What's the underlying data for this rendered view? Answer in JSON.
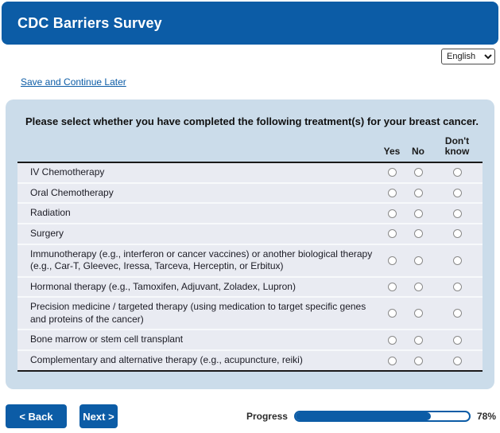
{
  "header": {
    "title": "CDC Barriers Survey"
  },
  "language": {
    "selected": "English",
    "options": [
      "English"
    ]
  },
  "links": {
    "save_continue": "Save and Continue Later"
  },
  "question": {
    "text": "Please select whether you have completed the following treatment(s) for your breast cancer."
  },
  "matrix": {
    "columns": [
      "Yes",
      "No",
      "Don't know"
    ],
    "rows": [
      "IV Chemotherapy",
      "Oral Chemotherapy",
      "Radiation",
      "Surgery",
      "Immunotherapy (e.g., interferon or cancer vaccines) or another biological therapy (e.g., Car-T, Gleevec, Iressa, Tarceva, Herceptin, or Erbitux)",
      "Hormonal therapy (e.g., Tamoxifen, Adjuvant, Zoladex, Lupron)",
      "Precision medicine / targeted therapy (using medication to target specific genes and proteins of the cancer)",
      "Bone marrow or stem cell transplant",
      "Complementary and alternative therapy (e.g., acupuncture, reiki)"
    ],
    "selections": [
      null,
      null,
      null,
      null,
      null,
      null,
      null,
      null,
      null
    ]
  },
  "footer": {
    "back_label": "< Back",
    "next_label": "Next >",
    "progress_label": "Progress",
    "progress_value": 78,
    "progress_percent": "78%"
  },
  "colors": {
    "brand_blue": "#0C5CA6",
    "panel_bg": "#CBDCEA",
    "row_bg": "#E9EBF2"
  }
}
